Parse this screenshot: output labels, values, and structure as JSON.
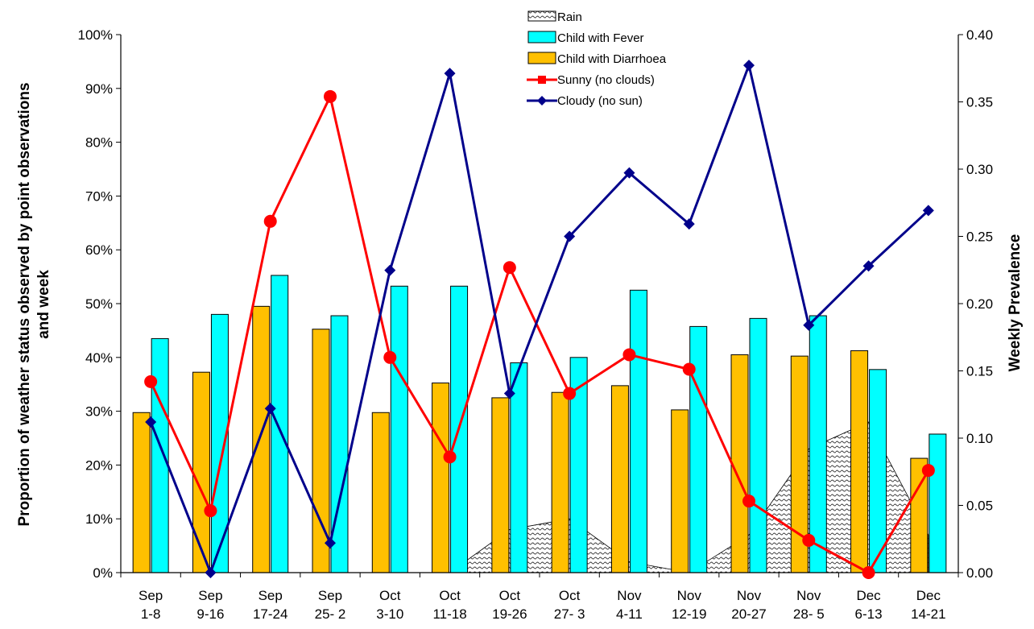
{
  "chart_data": {
    "type": "bar",
    "title": "",
    "categories_line1": [
      "Sep",
      "Sep",
      "Sep",
      "Sep",
      "Oct",
      "Oct",
      "Oct",
      "Oct",
      "Nov",
      "Nov",
      "Nov",
      "Nov",
      "Dec",
      "Dec"
    ],
    "categories_line2": [
      "1-8",
      "9-16",
      "17-24",
      "25- 2",
      "3-10",
      "11-18",
      "19-26",
      "27- 3",
      "4-11",
      "12-19",
      "20-27",
      "28- 5",
      "6-13",
      "14-21"
    ],
    "ylabel_left_line1": "Proportion of weather status observed by point observations",
    "ylabel_left_line2": "and week",
    "ylabel_right": "Weekly Prevalence",
    "ylim_left": [
      0,
      1.0
    ],
    "ylim_right": [
      0,
      0.4
    ],
    "left_ticks": [
      "0%",
      "10%",
      "20%",
      "30%",
      "40%",
      "50%",
      "60%",
      "70%",
      "80%",
      "90%",
      "100%"
    ],
    "right_ticks": [
      "0.00",
      "0.05",
      "0.10",
      "0.15",
      "0.20",
      "0.25",
      "0.30",
      "0.35",
      "0.40"
    ],
    "legend_position": "top-center",
    "series": [
      {
        "name": "Rain",
        "kind": "area",
        "axis": "left",
        "color": "#d9d9d9",
        "values": [
          0,
          0,
          0,
          0,
          0,
          0,
          0.08,
          0.1,
          0.02,
          0,
          0.07,
          0.23,
          0.28,
          0.07
        ]
      },
      {
        "name": "Child with Fever",
        "kind": "bar",
        "axis": "right",
        "color": "#00ffff",
        "values": [
          0.174,
          0.192,
          0.221,
          0.191,
          0.213,
          0.213,
          0.156,
          0.16,
          0.21,
          0.183,
          0.189,
          0.191,
          0.151,
          0.103
        ]
      },
      {
        "name": "Child with Diarrhoea",
        "kind": "bar",
        "axis": "right",
        "color": "#ffc000",
        "values": [
          0.119,
          0.149,
          0.198,
          0.181,
          0.119,
          0.141,
          0.13,
          0.134,
          0.139,
          0.121,
          0.162,
          0.161,
          0.165,
          0.085
        ]
      },
      {
        "name": "Sunny (no clouds)",
        "kind": "line",
        "axis": "left",
        "color": "#ff0000",
        "values": [
          0.355,
          0.115,
          0.653,
          0.885,
          0.4,
          0.215,
          0.567,
          0.333,
          0.405,
          0.378,
          0.133,
          0.06,
          0.0,
          0.19
        ]
      },
      {
        "name": "Cloudy (no sun)",
        "kind": "line",
        "axis": "left",
        "color": "#00008b",
        "values": [
          0.28,
          0.0,
          0.305,
          0.055,
          0.562,
          0.928,
          0.333,
          0.625,
          0.743,
          0.648,
          0.943,
          0.46,
          0.57,
          0.673
        ]
      }
    ]
  }
}
